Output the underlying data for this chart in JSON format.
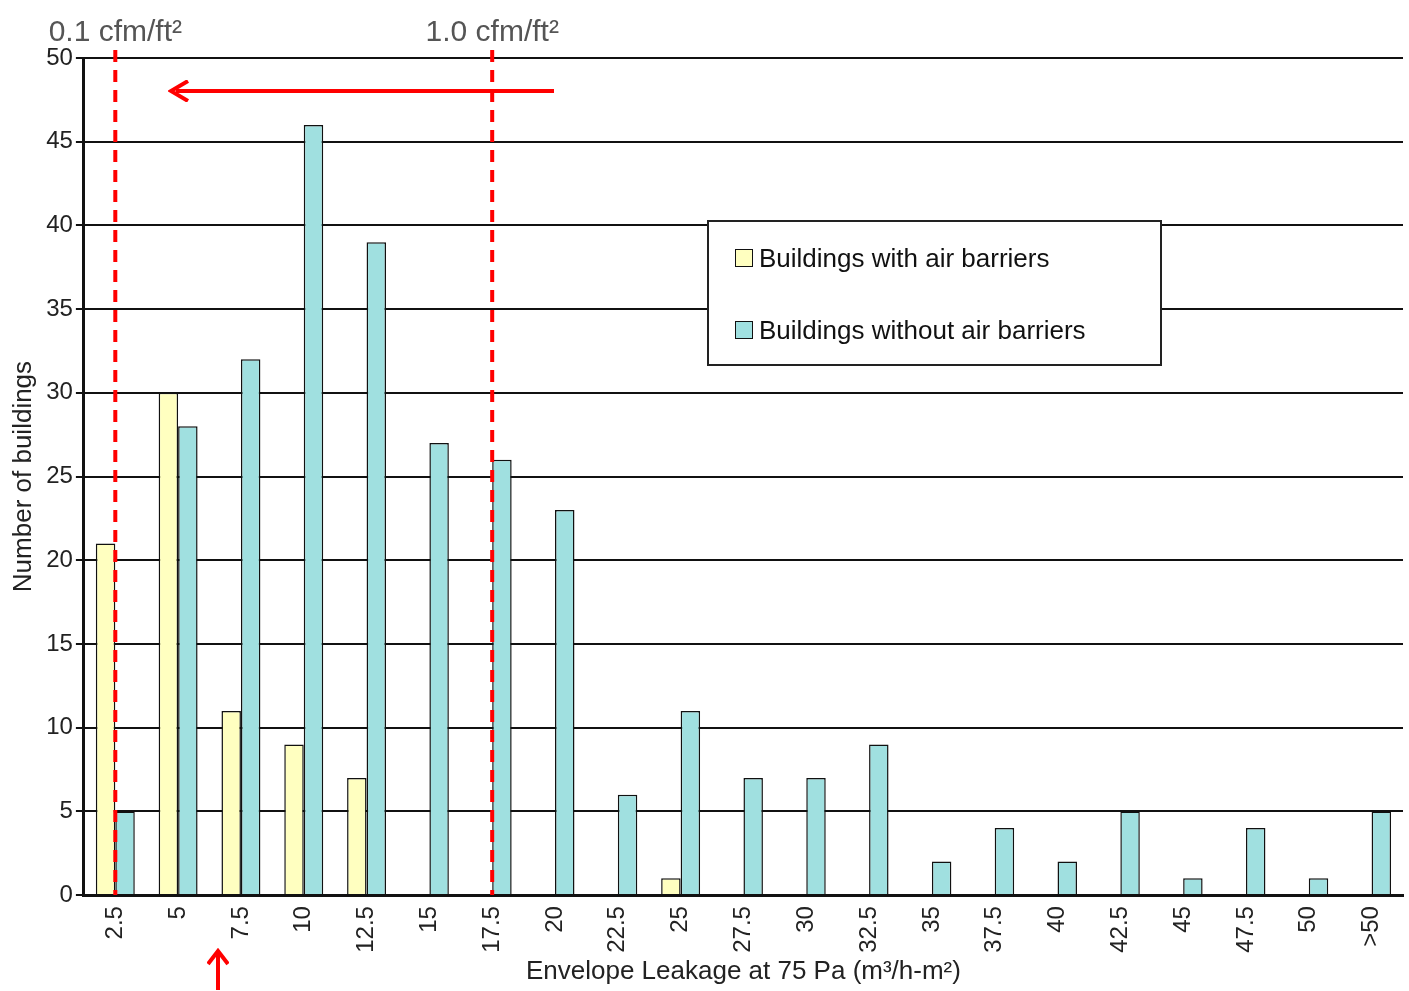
{
  "chart_data": {
    "type": "bar",
    "xlabel": "Envelope Leakage at 75 Pa (m³/h-m²)",
    "ylabel": "Number of buildings",
    "categories": [
      "2.5",
      "5",
      "7.5",
      "10",
      "12.5",
      "15",
      "17.5",
      "20",
      "22.5",
      "25",
      "27.5",
      "30",
      "32.5",
      "35",
      "37.5",
      "40",
      "42.5",
      "45",
      "47.5",
      "50",
      ">50"
    ],
    "series": [
      {
        "name": "Buildings with air barriers",
        "color": "#ffffc0",
        "values": [
          21,
          30,
          11,
          9,
          7,
          0,
          0,
          0,
          0,
          1,
          0,
          0,
          0,
          0,
          0,
          0,
          0,
          0,
          0,
          0,
          0
        ]
      },
      {
        "name": "Buildings without air barriers",
        "color": "#a0e0e0",
        "values": [
          5,
          28,
          32,
          46,
          39,
          27,
          26,
          23,
          6,
          11,
          7,
          7,
          9,
          2,
          4,
          2,
          5,
          1,
          4,
          1,
          5
        ]
      }
    ],
    "ylim": [
      0,
      50
    ],
    "yticks": [
      0,
      5,
      10,
      15,
      20,
      25,
      30,
      35,
      40,
      45,
      50
    ],
    "grid": "y",
    "legend": "top right",
    "ref_lines": [
      {
        "axis": "x",
        "value": "2.5",
        "label": "0.1 cfm/ft²",
        "color": "#ff0000",
        "line_style": "dashed"
      },
      {
        "axis": "x",
        "value": "17.5",
        "label": "1.0 cfm/ft²",
        "color": "#ff0000",
        "line_style": "dashed"
      }
    ]
  }
}
